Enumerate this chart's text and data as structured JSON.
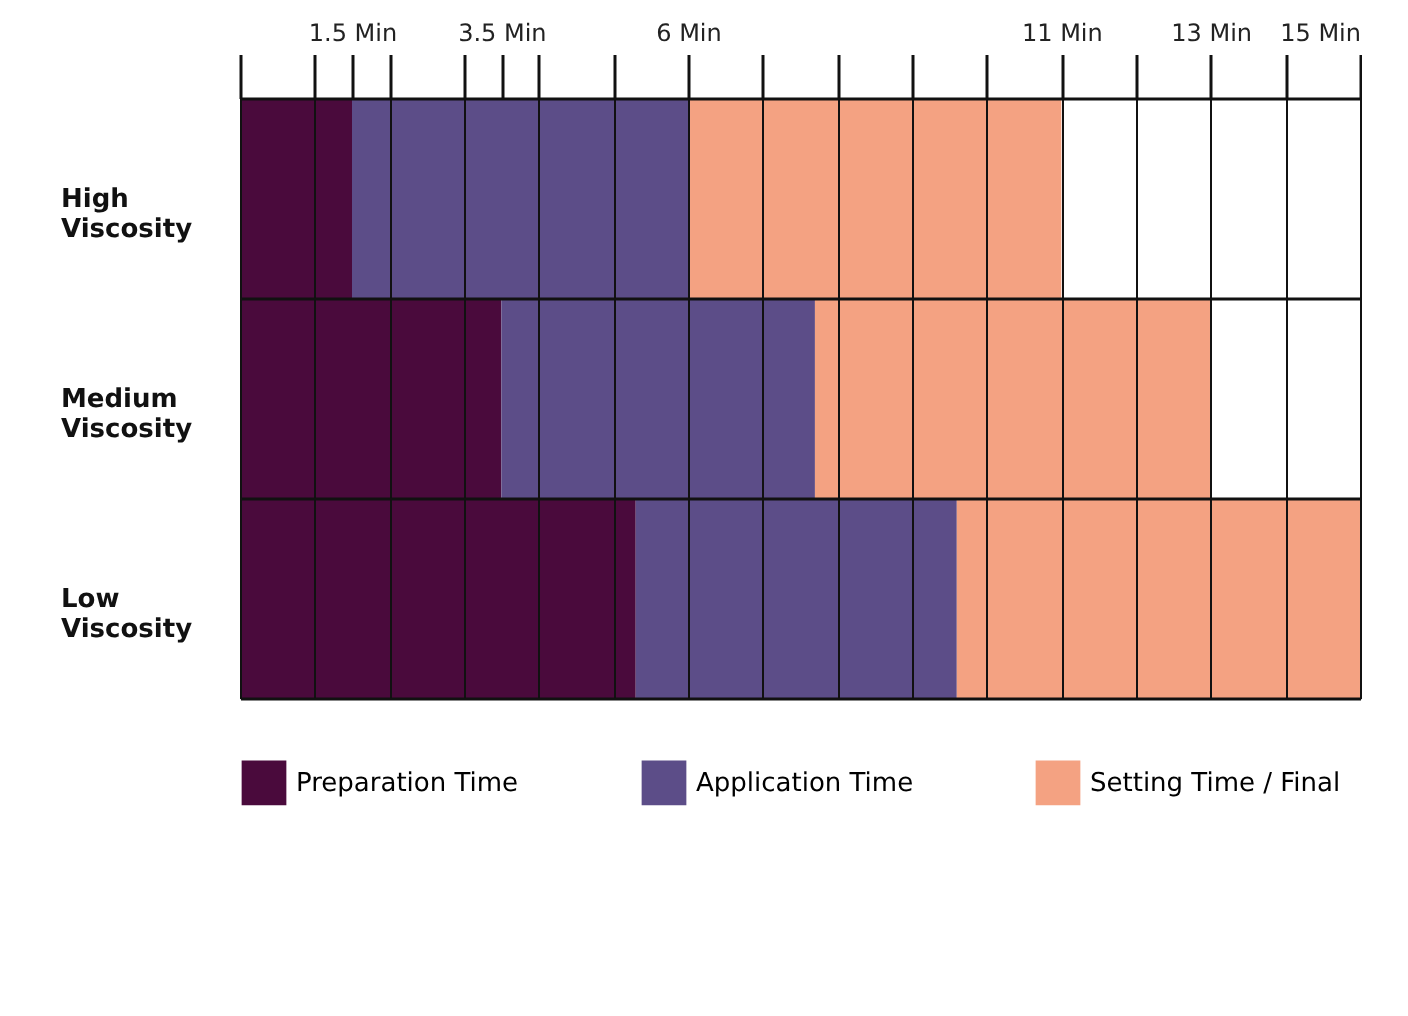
{
  "chart_data": {
    "type": "bar",
    "orientation": "horizontal",
    "stacked": true,
    "categories": [
      "High Viscosity",
      "Medium Viscosity",
      "Low Viscosity"
    ],
    "series": [
      {
        "name": "Preparation Time",
        "color": "#4a0a3c",
        "values": [
          1.5,
          3.5,
          5.3
        ]
      },
      {
        "name": "Application Time",
        "color": "#5c4d88",
        "values": [
          4.5,
          4.2,
          4.3
        ]
      },
      {
        "name": "Setting Time / Final",
        "color": "#f4a282",
        "values": [
          5,
          5.3,
          5.4
        ]
      }
    ],
    "xlim": [
      0,
      15
    ],
    "xticks": [
      {
        "value": 0,
        "label": null
      },
      {
        "value": 1,
        "label": null
      },
      {
        "value": 1.5,
        "label": "1.5 Min"
      },
      {
        "value": 2,
        "label": null
      },
      {
        "value": 3,
        "label": null
      },
      {
        "value": 3.5,
        "label": "3.5 Min"
      },
      {
        "value": 4,
        "label": null
      },
      {
        "value": 5,
        "label": null
      },
      {
        "value": 6,
        "label": "6 Min"
      },
      {
        "value": 7,
        "label": null
      },
      {
        "value": 8,
        "label": null
      },
      {
        "value": 9,
        "label": null
      },
      {
        "value": 10,
        "label": null
      },
      {
        "value": 11,
        "label": "11 Min"
      },
      {
        "value": 12,
        "label": null
      },
      {
        "value": 13,
        "label": "13 Min"
      },
      {
        "value": 14,
        "label": null
      },
      {
        "value": 15,
        "label": "15 Min"
      }
    ],
    "grid": true,
    "legend": "bottom"
  }
}
